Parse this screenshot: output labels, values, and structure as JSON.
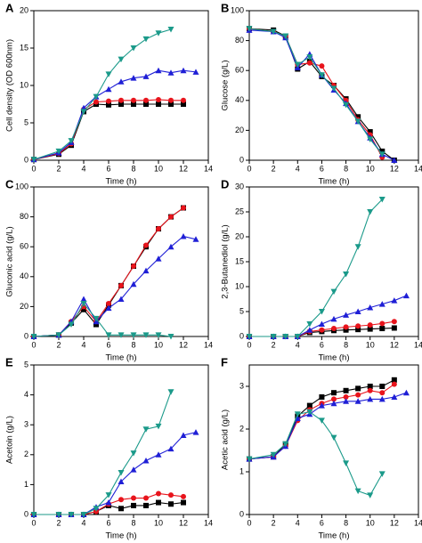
{
  "chart_data": [
    {
      "type": "line",
      "panel": "A",
      "x_label": "Time (h)",
      "y_label": "Cell density (OD 600nm)",
      "xlim": [
        0,
        14
      ],
      "xticks": [
        0,
        2,
        4,
        6,
        8,
        10,
        12,
        14
      ],
      "ylim": [
        0,
        20
      ],
      "yticks": [
        0,
        5,
        10,
        15,
        20
      ],
      "series": [
        {
          "color": "#000000",
          "marker": "square",
          "x": [
            0,
            2,
            3,
            4,
            5,
            6,
            7,
            8,
            9,
            10,
            11,
            12
          ],
          "values": [
            0.1,
            0.8,
            2,
            6.5,
            7.5,
            7.4,
            7.5,
            7.5,
            7.5,
            7.5,
            7.5,
            7.5
          ]
        },
        {
          "color": "#e8141c",
          "marker": "circle",
          "x": [
            0,
            2,
            3,
            4,
            5,
            6,
            7,
            8,
            9,
            10,
            11,
            12
          ],
          "values": [
            0.1,
            0.9,
            2.2,
            6.8,
            7.8,
            7.9,
            8,
            8,
            8,
            8.1,
            8,
            8
          ]
        },
        {
          "color": "#1f1fd6",
          "marker": "triangle-up",
          "x": [
            0,
            2,
            3,
            4,
            5,
            6,
            7,
            8,
            9,
            10,
            11,
            12,
            13
          ],
          "values": [
            0.1,
            1,
            2.4,
            7,
            8.5,
            9.5,
            10.5,
            11,
            11.2,
            12,
            11.7,
            12,
            11.8
          ]
        },
        {
          "color": "#1b9a8a",
          "marker": "triangle-down",
          "x": [
            0,
            2,
            3,
            4,
            5,
            6,
            7,
            8,
            9,
            10,
            11
          ],
          "values": [
            0.1,
            1.2,
            2.6,
            6.5,
            8.5,
            11.5,
            13.5,
            15,
            16.2,
            17,
            17.5
          ]
        }
      ]
    },
    {
      "type": "line",
      "panel": "B",
      "x_label": "Time (h)",
      "y_label": "Glucose (g/L)",
      "xlim": [
        0,
        14
      ],
      "xticks": [
        0,
        2,
        4,
        6,
        8,
        10,
        12,
        14
      ],
      "ylim": [
        0,
        100
      ],
      "yticks": [
        0,
        20,
        40,
        60,
        80,
        100
      ],
      "series": [
        {
          "color": "#000000",
          "marker": "square",
          "x": [
            0,
            2,
            3,
            4,
            5,
            6,
            7,
            8,
            9,
            10,
            11,
            12
          ],
          "values": [
            88,
            87,
            83,
            61,
            66,
            56,
            50,
            41,
            29,
            19,
            6,
            0
          ]
        },
        {
          "color": "#e8141c",
          "marker": "circle",
          "x": [
            0,
            2,
            3,
            4,
            5,
            6,
            7,
            8,
            9,
            10,
            11
          ],
          "values": [
            88,
            86,
            83,
            64,
            65,
            63,
            50,
            40,
            27,
            17,
            2
          ]
        },
        {
          "color": "#1f1fd6",
          "marker": "triangle-up",
          "x": [
            0,
            2,
            3,
            4,
            5,
            6,
            7,
            8,
            9,
            10,
            11,
            12
          ],
          "values": [
            87,
            86,
            82,
            62,
            71,
            57,
            47,
            38,
            26,
            15,
            4,
            0
          ]
        },
        {
          "color": "#1b9a8a",
          "marker": "triangle-down",
          "x": [
            0,
            2,
            3,
            4,
            5,
            6,
            7,
            8,
            9,
            10,
            11
          ],
          "values": [
            88,
            86,
            83,
            64,
            69,
            57,
            48,
            37,
            26,
            14,
            4
          ]
        }
      ]
    },
    {
      "type": "line",
      "panel": "C",
      "x_label": "Time (h)",
      "y_label": "Gluconic acid (g/L)",
      "xlim": [
        0,
        14
      ],
      "xticks": [
        0,
        2,
        4,
        6,
        8,
        10,
        12,
        14
      ],
      "ylim": [
        0,
        100
      ],
      "yticks": [
        0,
        20,
        40,
        60,
        80,
        100
      ],
      "series": [
        {
          "color": "#000000",
          "marker": "square",
          "x": [
            0,
            2,
            3,
            4,
            5,
            6,
            7,
            8,
            9,
            10,
            11,
            12
          ],
          "values": [
            0,
            1,
            9,
            18,
            8,
            21,
            34,
            47,
            60,
            72,
            80,
            86
          ]
        },
        {
          "color": "#e8141c",
          "marker": "circle",
          "x": [
            0,
            2,
            3,
            4,
            5,
            6,
            7,
            8,
            9,
            10,
            11,
            12
          ],
          "values": [
            0,
            1,
            10,
            20,
            10,
            22,
            34,
            47,
            61,
            72,
            80,
            86
          ]
        },
        {
          "color": "#1f1fd6",
          "marker": "triangle-up",
          "x": [
            0,
            2,
            3,
            4,
            5,
            6,
            7,
            8,
            9,
            10,
            11,
            12,
            13
          ],
          "values": [
            0,
            1,
            10,
            25,
            10,
            19,
            25,
            35,
            44,
            52,
            60,
            67,
            65
          ]
        },
        {
          "color": "#1b9a8a",
          "marker": "triangle-down",
          "x": [
            0,
            2,
            3,
            4,
            5,
            6,
            7,
            8,
            9,
            10,
            11
          ],
          "values": [
            0,
            1,
            8,
            22,
            12,
            1,
            1,
            1,
            1,
            1,
            0
          ]
        }
      ]
    },
    {
      "type": "line",
      "panel": "D",
      "x_label": "Time (h)",
      "y_label": "2,3-Butanediol (g/L)",
      "xlim": [
        0,
        14
      ],
      "xticks": [
        0,
        2,
        4,
        6,
        8,
        10,
        12,
        14
      ],
      "ylim": [
        0,
        30
      ],
      "yticks": [
        0,
        5,
        10,
        15,
        20,
        25,
        30
      ],
      "series": [
        {
          "color": "#000000",
          "marker": "square",
          "x": [
            0,
            2,
            3,
            4,
            5,
            6,
            7,
            8,
            9,
            10,
            11,
            12
          ],
          "values": [
            0,
            0,
            0,
            0,
            0.8,
            1,
            1.2,
            1.3,
            1.4,
            1.5,
            1.6,
            1.7
          ]
        },
        {
          "color": "#e8141c",
          "marker": "circle",
          "x": [
            0,
            2,
            3,
            4,
            5,
            6,
            7,
            8,
            9,
            10,
            11,
            12
          ],
          "values": [
            0,
            0,
            0,
            0,
            1,
            1.3,
            1.6,
            1.9,
            2.1,
            2.3,
            2.6,
            3
          ]
        },
        {
          "color": "#1f1fd6",
          "marker": "triangle-up",
          "x": [
            0,
            2,
            3,
            4,
            5,
            6,
            7,
            8,
            9,
            10,
            11,
            12,
            13
          ],
          "values": [
            0,
            0,
            0,
            0,
            1.3,
            2.5,
            3.5,
            4.3,
            5,
            5.8,
            6.5,
            7.2,
            8.2
          ]
        },
        {
          "color": "#1b9a8a",
          "marker": "triangle-down",
          "x": [
            0,
            2,
            3,
            4,
            5,
            6,
            7,
            8,
            9,
            10,
            11
          ],
          "values": [
            0,
            0,
            0,
            0,
            2.5,
            5,
            9,
            12.5,
            18,
            25,
            27.5
          ]
        }
      ]
    },
    {
      "type": "line",
      "panel": "E",
      "x_label": "Time (h)",
      "y_label": "Acetoin (g/L)",
      "xlim": [
        0,
        14
      ],
      "xticks": [
        0,
        2,
        4,
        6,
        8,
        10,
        12,
        14
      ],
      "ylim": [
        0,
        5
      ],
      "yticks": [
        0,
        1,
        2,
        3,
        4,
        5
      ],
      "series": [
        {
          "color": "#000000",
          "marker": "square",
          "x": [
            0,
            2,
            3,
            4,
            5,
            6,
            7,
            8,
            9,
            10,
            11,
            12
          ],
          "values": [
            0,
            0,
            0,
            0,
            0.1,
            0.3,
            0.2,
            0.3,
            0.3,
            0.4,
            0.35,
            0.4
          ]
        },
        {
          "color": "#e8141c",
          "marker": "circle",
          "x": [
            0,
            2,
            3,
            4,
            5,
            6,
            7,
            8,
            9,
            10,
            11,
            12
          ],
          "values": [
            0,
            0,
            0,
            0,
            0.1,
            0.35,
            0.5,
            0.55,
            0.55,
            0.7,
            0.65,
            0.6
          ]
        },
        {
          "color": "#1f1fd6",
          "marker": "triangle-up",
          "x": [
            0,
            2,
            3,
            4,
            5,
            6,
            7,
            8,
            9,
            10,
            11,
            12,
            13
          ],
          "values": [
            0,
            0,
            0,
            0,
            0.25,
            0.4,
            1.1,
            1.5,
            1.8,
            2,
            2.2,
            2.65,
            2.75
          ]
        },
        {
          "color": "#1b9a8a",
          "marker": "triangle-down",
          "x": [
            0,
            2,
            3,
            4,
            5,
            6,
            7,
            8,
            9,
            10,
            11
          ],
          "values": [
            0,
            0,
            0,
            0,
            0.2,
            0.65,
            1.4,
            2.05,
            2.85,
            2.95,
            4.1
          ]
        }
      ]
    },
    {
      "type": "line",
      "panel": "F",
      "x_label": "Time (h)",
      "y_label": "Acetic acid (g/L)",
      "xlim": [
        0,
        14
      ],
      "xticks": [
        0,
        2,
        4,
        6,
        8,
        10,
        12,
        14
      ],
      "ylim": [
        0,
        3.5
      ],
      "yticks": [
        0,
        1,
        2,
        3
      ],
      "series": [
        {
          "color": "#000000",
          "marker": "square",
          "x": [
            0,
            2,
            3,
            4,
            5,
            6,
            7,
            8,
            9,
            10,
            11,
            12
          ],
          "values": [
            1.3,
            1.35,
            1.65,
            2.3,
            2.55,
            2.75,
            2.85,
            2.9,
            2.95,
            3,
            3,
            3.15
          ]
        },
        {
          "color": "#e8141c",
          "marker": "circle",
          "x": [
            0,
            2,
            3,
            4,
            5,
            6,
            7,
            8,
            9,
            10,
            11,
            12
          ],
          "values": [
            1.3,
            1.35,
            1.6,
            2.2,
            2.45,
            2.6,
            2.7,
            2.75,
            2.8,
            2.9,
            2.85,
            3.05
          ]
        },
        {
          "color": "#1f1fd6",
          "marker": "triangle-up",
          "x": [
            0,
            2,
            3,
            4,
            5,
            6,
            7,
            8,
            9,
            10,
            11,
            12,
            13
          ],
          "values": [
            1.3,
            1.35,
            1.6,
            2.25,
            2.35,
            2.55,
            2.6,
            2.65,
            2.65,
            2.7,
            2.7,
            2.75,
            2.85
          ]
        },
        {
          "color": "#1b9a8a",
          "marker": "triangle-down",
          "x": [
            0,
            2,
            3,
            4,
            5,
            6,
            7,
            8,
            9,
            10,
            11
          ],
          "values": [
            1.3,
            1.4,
            1.65,
            2.35,
            2.4,
            2.2,
            1.8,
            1.2,
            0.55,
            0.45,
            0.95
          ]
        }
      ]
    }
  ]
}
